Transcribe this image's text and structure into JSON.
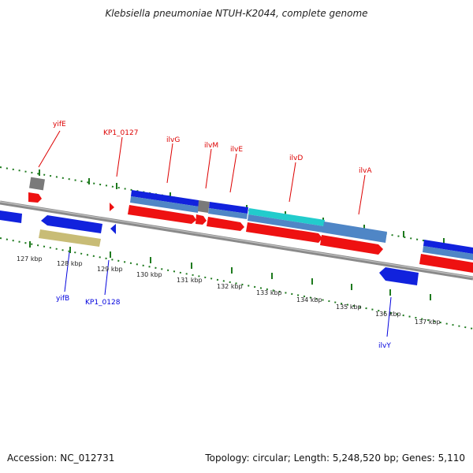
{
  "title": "Klebsiella pneumoniae NTUH-K2044, complete genome",
  "footer": {
    "accession": "Accession: NC_012731",
    "summary": "Topology: circular; Length: 5,248,520 bp; Genes: 5,110"
  },
  "colors": {
    "backbone": "#8a8a8a",
    "tick": "#1e7a1e",
    "tick_label": "#222222",
    "gene_label_top": "#dd0000",
    "gene_label_bottom": "#0000dd",
    "feature_red": "#ee1111",
    "feature_blue": "#1122dd",
    "feature_steelblue": "#4f86c6",
    "feature_cyan": "#22cccc",
    "feature_gray": "#7a7a7a",
    "feature_khaki": "#c8bc76"
  },
  "scale_labels": [
    "127 kbp",
    "128 kbp",
    "129 kbp",
    "130 kbp",
    "131 kbp",
    "132 kbp",
    "133 kbp",
    "134 kbp",
    "135 kbp",
    "136 kbp",
    "137 kbp"
  ],
  "gene_labels_top": [
    "yifE",
    "KP1_0127",
    "ilvG",
    "ilvM",
    "ilvE",
    "ilvD",
    "ilvA"
  ],
  "gene_labels_bottom": [
    "yifB",
    "KP1_0128",
    "ilvY"
  ]
}
